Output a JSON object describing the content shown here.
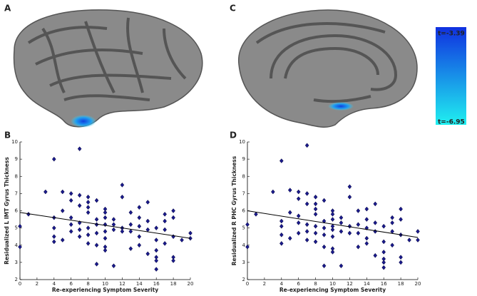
{
  "panels": [
    "A",
    "B",
    "C",
    "D"
  ],
  "colorbar": {
    "top_label": "t=-3.39",
    "bottom_label": "t=-6.95",
    "colors": [
      "#1030e0",
      "#20f0f0"
    ]
  },
  "chart_data": [
    {
      "type": "scatter",
      "x_label": "Re-experiencing Symptom Severity",
      "y_label": "Residualized L IMT Gyrus Thickness",
      "x": [
        0,
        0,
        1,
        3,
        4,
        4,
        4,
        4,
        4,
        5,
        5,
        5,
        6,
        6,
        6,
        6,
        6,
        7,
        7,
        7,
        7,
        7,
        7,
        8,
        8,
        8,
        8,
        8,
        8,
        8,
        9,
        9,
        9,
        9,
        9,
        9,
        10,
        10,
        10,
        10,
        10,
        10,
        10,
        10,
        11,
        11,
        11,
        11,
        12,
        12,
        12,
        12,
        13,
        13,
        13,
        13,
        14,
        14,
        14,
        14,
        14,
        15,
        15,
        15,
        15,
        16,
        16,
        16,
        16,
        16,
        16,
        17,
        17,
        17,
        17,
        18,
        18,
        18,
        18,
        18,
        19,
        20,
        20
      ],
      "values": [
        5.1,
        3.9,
        5.8,
        7.1,
        9.0,
        5.6,
        5.0,
        4.5,
        4.2,
        7.1,
        6.0,
        4.3,
        7.0,
        6.6,
        5.6,
        5.2,
        4.8,
        9.6,
        6.9,
        6.3,
        5.3,
        4.9,
        4.5,
        6.8,
        6.5,
        6.2,
        5.9,
        5.0,
        4.6,
        4.1,
        6.6,
        5.5,
        5.2,
        4.7,
        4.0,
        2.9,
        6.1,
        5.9,
        5.6,
        5.2,
        4.8,
        4.4,
        3.9,
        3.7,
        5.5,
        5.2,
        4.9,
        2.8,
        7.5,
        6.8,
        5.0,
        4.8,
        5.9,
        5.2,
        4.8,
        3.8,
        6.2,
        5.6,
        5.1,
        4.5,
        4.0,
        6.5,
        5.4,
        4.9,
        3.5,
        5.0,
        4.3,
        3.7,
        3.3,
        3.1,
        2.6,
        5.8,
        5.4,
        4.9,
        4.1,
        6.0,
        5.6,
        4.5,
        3.3,
        3.1,
        4.3,
        4.7,
        4.4
      ],
      "color": "#1a1a8c",
      "fit": {
        "x": [
          0,
          20
        ],
        "values": [
          5.9,
          4.4
        ]
      },
      "xlim": [
        0,
        20
      ],
      "xticks": [
        0,
        2,
        4,
        6,
        8,
        10,
        12,
        14,
        16,
        18,
        20
      ],
      "ylim": [
        2,
        10
      ],
      "yticks": [
        2,
        3,
        4,
        5,
        6,
        7,
        8,
        9,
        10
      ]
    },
    {
      "type": "scatter",
      "x_label": "Re-experiencing Symptom Severity",
      "y_label": "Residualized R PHC Gyrus Thickness",
      "x": [
        0,
        0,
        1,
        3,
        4,
        4,
        4,
        4,
        4,
        5,
        5,
        5,
        6,
        6,
        6,
        6,
        6,
        7,
        7,
        7,
        7,
        7,
        7,
        8,
        8,
        8,
        8,
        8,
        8,
        8,
        9,
        9,
        9,
        9,
        9,
        9,
        10,
        10,
        10,
        10,
        10,
        10,
        10,
        10,
        11,
        11,
        11,
        11,
        12,
        12,
        12,
        12,
        13,
        13,
        13,
        13,
        14,
        14,
        14,
        14,
        14,
        15,
        15,
        15,
        15,
        16,
        16,
        16,
        16,
        16,
        16,
        17,
        17,
        17,
        17,
        18,
        18,
        18,
        18,
        18,
        19,
        20,
        20
      ],
      "values": [
        5.2,
        3.9,
        5.8,
        7.1,
        8.9,
        5.4,
        5.1,
        4.6,
        4.1,
        7.2,
        5.9,
        4.4,
        7.1,
        6.7,
        5.7,
        5.3,
        4.7,
        9.8,
        7.0,
        6.4,
        5.2,
        4.8,
        4.3,
        6.8,
        6.4,
        6.1,
        5.8,
        5.1,
        4.7,
        4.2,
        6.6,
        5.4,
        5.0,
        4.6,
        3.9,
        2.8,
        6.0,
        5.8,
        5.5,
        5.1,
        4.9,
        4.5,
        3.8,
        3.6,
        5.6,
        5.3,
        4.8,
        2.8,
        7.4,
        6.8,
        5.1,
        4.7,
        6.0,
        5.2,
        4.7,
        3.9,
        6.1,
        5.5,
        5.0,
        4.4,
        4.1,
        6.4,
        5.3,
        4.8,
        3.4,
        5.1,
        4.2,
        3.6,
        3.2,
        3.0,
        2.7,
        5.6,
        5.3,
        4.8,
        4.0,
        6.1,
        5.5,
        4.6,
        3.3,
        3.0,
        4.3,
        4.8,
        4.3
      ],
      "color": "#1a1a8c",
      "fit": {
        "x": [
          0,
          20
        ],
        "values": [
          6.0,
          4.45
        ]
      },
      "xlim": [
        0,
        20
      ],
      "xticks": [
        0,
        2,
        4,
        6,
        8,
        10,
        12,
        14,
        16,
        18,
        20
      ],
      "ylim": [
        2,
        10
      ],
      "yticks": [
        2,
        3,
        4,
        5,
        6,
        7,
        8,
        9,
        10
      ]
    }
  ]
}
